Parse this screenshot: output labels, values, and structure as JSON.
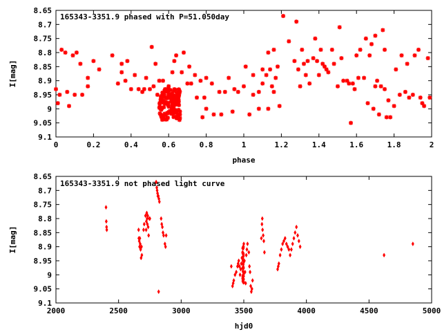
{
  "chart_data": [
    {
      "type": "scatter",
      "title": "165343-3351.9 phased with P=51.050day",
      "xlabel": "phase",
      "ylabel": "I[mag]",
      "xlim": [
        0,
        2
      ],
      "ylim": [
        9.1,
        8.65
      ],
      "y_inverted": true,
      "grid": false,
      "marker": "star",
      "color": "#ff0000",
      "xticks": [
        "0",
        "0.2",
        "0.4",
        "0.6",
        "0.8",
        "1",
        "1.2",
        "1.4",
        "1.6",
        "1.8",
        "2"
      ],
      "yticks": [
        "8.65",
        "8.7",
        "8.75",
        "8.8",
        "8.85",
        "8.9",
        "8.95",
        "9",
        "9.05",
        "9.1"
      ],
      "points": [
        [
          0.0,
          8.93
        ],
        [
          0.01,
          8.98
        ],
        [
          0.02,
          8.95
        ],
        [
          0.03,
          8.79
        ],
        [
          0.05,
          8.8
        ],
        [
          0.06,
          8.94
        ],
        [
          0.07,
          8.99
        ],
        [
          0.09,
          8.81
        ],
        [
          0.1,
          8.95
        ],
        [
          0.11,
          8.8
        ],
        [
          0.13,
          8.84
        ],
        [
          0.14,
          8.95
        ],
        [
          0.17,
          8.89
        ],
        [
          0.17,
          8.92
        ],
        [
          0.2,
          8.83
        ],
        [
          0.23,
          8.86
        ],
        [
          0.3,
          8.81
        ],
        [
          0.33,
          8.91
        ],
        [
          0.35,
          8.84
        ],
        [
          0.35,
          8.87
        ],
        [
          0.37,
          8.9
        ],
        [
          0.38,
          8.83
        ],
        [
          0.4,
          8.93
        ],
        [
          0.42,
          8.88
        ],
        [
          0.44,
          8.93
        ],
        [
          0.46,
          8.94
        ],
        [
          0.47,
          8.93
        ],
        [
          0.48,
          8.89
        ],
        [
          0.5,
          8.93
        ],
        [
          0.51,
          8.78
        ],
        [
          0.52,
          8.92
        ],
        [
          0.53,
          8.84
        ],
        [
          0.54,
          8.95
        ],
        [
          0.55,
          8.9
        ],
        [
          0.57,
          8.9
        ],
        [
          0.59,
          8.93
        ],
        [
          0.6,
          8.92
        ],
        [
          0.62,
          8.87
        ],
        [
          0.63,
          8.83
        ],
        [
          0.64,
          8.81
        ],
        [
          0.65,
          8.96
        ],
        [
          0.66,
          9.02
        ],
        [
          0.67,
          8.87
        ],
        [
          0.68,
          8.8
        ],
        [
          0.7,
          8.91
        ],
        [
          0.71,
          8.85
        ],
        [
          0.72,
          8.91
        ],
        [
          0.74,
          8.88
        ],
        [
          0.75,
          8.96
        ],
        [
          0.77,
          8.9
        ],
        [
          0.78,
          9.03
        ],
        [
          0.79,
          8.96
        ],
        [
          0.8,
          9.0
        ],
        [
          0.8,
          8.89
        ],
        [
          0.83,
          8.91
        ],
        [
          0.84,
          9.02
        ],
        [
          0.87,
          8.94
        ],
        [
          0.88,
          9.02
        ],
        [
          0.9,
          8.94
        ],
        [
          0.92,
          8.89
        ],
        [
          0.94,
          9.01
        ],
        [
          0.95,
          8.93
        ],
        [
          0.97,
          8.94
        ],
        [
          1.0,
          8.92
        ],
        [
          1.01,
          8.85
        ],
        [
          1.03,
          9.02
        ],
        [
          1.05,
          8.95
        ],
        [
          1.05,
          8.88
        ],
        [
          1.08,
          9.0
        ],
        [
          1.08,
          8.94
        ],
        [
          1.1,
          8.91
        ],
        [
          1.1,
          8.86
        ],
        [
          1.12,
          8.88
        ],
        [
          1.13,
          9.0
        ],
        [
          1.13,
          8.8
        ],
        [
          1.14,
          8.86
        ],
        [
          1.15,
          8.92
        ],
        [
          1.16,
          8.79
        ],
        [
          1.16,
          8.94
        ],
        [
          1.17,
          8.89
        ],
        [
          1.18,
          8.85
        ],
        [
          1.19,
          8.99
        ],
        [
          1.21,
          8.67
        ],
        [
          1.24,
          8.76
        ],
        [
          1.27,
          8.83
        ],
        [
          1.28,
          8.69
        ],
        [
          1.29,
          8.86
        ],
        [
          1.3,
          8.92
        ],
        [
          1.31,
          8.79
        ],
        [
          1.32,
          8.84
        ],
        [
          1.33,
          8.88
        ],
        [
          1.34,
          8.83
        ],
        [
          1.35,
          8.91
        ],
        [
          1.37,
          8.82
        ],
        [
          1.38,
          8.75
        ],
        [
          1.39,
          8.83
        ],
        [
          1.4,
          8.88
        ],
        [
          1.41,
          8.79
        ],
        [
          1.42,
          8.84
        ],
        [
          1.43,
          8.85
        ],
        [
          1.44,
          8.86
        ],
        [
          1.45,
          8.87
        ],
        [
          1.47,
          8.79
        ],
        [
          1.48,
          8.84
        ],
        [
          1.5,
          8.92
        ],
        [
          1.51,
          8.71
        ],
        [
          1.52,
          8.82
        ],
        [
          1.53,
          8.9
        ],
        [
          1.55,
          8.9
        ],
        [
          1.56,
          8.91
        ],
        [
          1.57,
          9.05
        ],
        [
          1.58,
          8.91
        ],
        [
          1.59,
          8.93
        ],
        [
          1.6,
          8.81
        ],
        [
          1.61,
          8.89
        ],
        [
          1.62,
          8.79
        ],
        [
          1.64,
          8.89
        ],
        [
          1.65,
          8.75
        ],
        [
          1.66,
          8.98
        ],
        [
          1.67,
          8.81
        ],
        [
          1.68,
          8.77
        ],
        [
          1.69,
          9.0
        ],
        [
          1.7,
          8.74
        ],
        [
          1.7,
          8.92
        ],
        [
          1.71,
          8.9
        ],
        [
          1.72,
          9.02
        ],
        [
          1.73,
          8.92
        ],
        [
          1.74,
          8.72
        ],
        [
          1.75,
          8.79
        ],
        [
          1.75,
          8.93
        ],
        [
          1.76,
          9.03
        ],
        [
          1.77,
          8.97
        ],
        [
          1.78,
          9.03
        ],
        [
          1.8,
          8.99
        ],
        [
          1.81,
          8.86
        ],
        [
          1.83,
          8.95
        ],
        [
          1.84,
          8.81
        ],
        [
          1.86,
          8.94
        ],
        [
          1.87,
          8.84
        ],
        [
          1.88,
          8.96
        ],
        [
          1.9,
          8.95
        ],
        [
          1.91,
          8.81
        ],
        [
          1.93,
          8.79
        ],
        [
          1.94,
          8.96
        ],
        [
          1.95,
          8.98
        ],
        [
          1.96,
          8.99
        ],
        [
          1.98,
          8.82
        ],
        [
          1.99,
          8.96
        ]
      ],
      "dense_clusters": [
        {
          "x_range": [
            0.55,
            0.66
          ],
          "y_range": [
            8.93,
            9.04
          ],
          "count": 140
        }
      ]
    },
    {
      "type": "scatter",
      "title": "165343-3351.9 not phased light curve",
      "xlabel": "hjd0",
      "ylabel": "I[mag]",
      "xlim": [
        2000,
        5000
      ],
      "ylim": [
        9.1,
        8.65
      ],
      "y_inverted": true,
      "grid": false,
      "marker": "diamond",
      "color": "#ff0000",
      "xticks": [
        "2000",
        "2500",
        "3000",
        "3500",
        "4000",
        "4500",
        "5000"
      ],
      "yticks": [
        "8.65",
        "8.7",
        "8.75",
        "8.8",
        "8.85",
        "8.9",
        "8.95",
        "9",
        "9.05",
        "9.1"
      ],
      "points": [
        [
          2400,
          8.76
        ],
        [
          2402,
          8.81
        ],
        [
          2404,
          8.83
        ],
        [
          2406,
          8.84
        ],
        [
          2660,
          8.84
        ],
        [
          2662,
          8.87
        ],
        [
          2665,
          8.88
        ],
        [
          2668,
          8.9
        ],
        [
          2670,
          8.87
        ],
        [
          2673,
          8.89
        ],
        [
          2676,
          8.91
        ],
        [
          2680,
          8.94
        ],
        [
          2683,
          8.9
        ],
        [
          2686,
          8.93
        ],
        [
          2700,
          8.84
        ],
        [
          2705,
          8.82
        ],
        [
          2715,
          8.79
        ],
        [
          2720,
          8.84
        ],
        [
          2722,
          8.81
        ],
        [
          2725,
          8.78
        ],
        [
          2728,
          8.8
        ],
        [
          2730,
          8.82
        ],
        [
          2733,
          8.79
        ],
        [
          2736,
          8.83
        ],
        [
          2740,
          8.86
        ],
        [
          2745,
          8.8
        ],
        [
          2750,
          8.8
        ],
        [
          2800,
          8.67
        ],
        [
          2805,
          8.69
        ],
        [
          2808,
          8.7
        ],
        [
          2811,
          8.71
        ],
        [
          2814,
          8.72
        ],
        [
          2818,
          8.72
        ],
        [
          2822,
          8.73
        ],
        [
          2826,
          8.74
        ],
        [
          2820,
          9.06
        ],
        [
          2840,
          8.8
        ],
        [
          2845,
          8.82
        ],
        [
          2850,
          8.83
        ],
        [
          2855,
          8.85
        ],
        [
          2860,
          8.86
        ],
        [
          2870,
          8.89
        ],
        [
          2875,
          8.9
        ],
        [
          2880,
          8.86
        ],
        [
          3400,
          8.97
        ],
        [
          3410,
          9.04
        ],
        [
          3415,
          9.03
        ],
        [
          3420,
          9.02
        ],
        [
          3430,
          9.0
        ],
        [
          3440,
          8.99
        ],
        [
          3450,
          8.97
        ],
        [
          3455,
          8.96
        ],
        [
          3460,
          8.95
        ],
        [
          3465,
          8.97
        ],
        [
          3470,
          9.0
        ],
        [
          3475,
          8.98
        ],
        [
          3480,
          8.96
        ],
        [
          3485,
          8.94
        ],
        [
          3490,
          8.92
        ],
        [
          3495,
          8.9
        ],
        [
          3500,
          8.89
        ],
        [
          3505,
          8.95
        ],
        [
          3510,
          8.99
        ],
        [
          3515,
          9.03
        ],
        [
          3520,
          8.93
        ],
        [
          3525,
          8.91
        ],
        [
          3530,
          8.89
        ],
        [
          3540,
          8.92
        ],
        [
          3545,
          8.97
        ],
        [
          3550,
          8.99
        ],
        [
          3555,
          9.04
        ],
        [
          3560,
          9.06
        ],
        [
          3565,
          9.05
        ],
        [
          3570,
          9.02
        ],
        [
          3640,
          8.87
        ],
        [
          3645,
          8.82
        ],
        [
          3648,
          8.8
        ],
        [
          3650,
          8.84
        ],
        [
          3655,
          8.86
        ],
        [
          3660,
          8.88
        ],
        [
          3665,
          8.92
        ],
        [
          3770,
          8.98
        ],
        [
          3775,
          8.97
        ],
        [
          3780,
          8.96
        ],
        [
          3790,
          8.93
        ],
        [
          3800,
          8.91
        ],
        [
          3810,
          8.89
        ],
        [
          3820,
          8.88
        ],
        [
          3830,
          8.87
        ],
        [
          3840,
          8.89
        ],
        [
          3850,
          8.9
        ],
        [
          3860,
          8.91
        ],
        [
          3870,
          8.93
        ],
        [
          3880,
          8.91
        ],
        [
          3890,
          8.89
        ],
        [
          3900,
          8.87
        ],
        [
          3910,
          8.85
        ],
        [
          3920,
          8.83
        ],
        [
          3930,
          8.86
        ],
        [
          3940,
          8.88
        ],
        [
          3950,
          8.9
        ],
        [
          4620,
          8.93
        ],
        [
          4850,
          8.89
        ]
      ],
      "dense_clusters": [
        {
          "x_range": [
            3490,
            3500
          ],
          "y_range": [
            8.9,
            9.03
          ],
          "count": 40
        }
      ]
    }
  ]
}
